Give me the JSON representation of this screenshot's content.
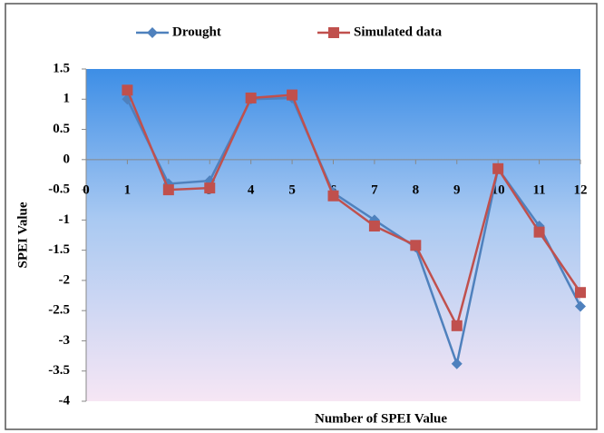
{
  "chart_data": {
    "type": "line",
    "x_label": "Number of  SPEI Value",
    "y_label": "SPEI Value",
    "x": [
      1,
      2,
      3,
      4,
      5,
      6,
      7,
      8,
      9,
      10,
      11,
      12
    ],
    "series": [
      {
        "name": "Drought",
        "color": "#4f81bd",
        "marker": "diamond",
        "values": [
          1.0,
          -0.4,
          -0.35,
          1.0,
          1.02,
          -0.55,
          -1.0,
          -1.45,
          -3.38,
          -0.15,
          -1.1,
          -2.43
        ]
      },
      {
        "name": "Simulated data",
        "color": "#c0504d",
        "marker": "square",
        "values": [
          1.15,
          -0.5,
          -0.47,
          1.02,
          1.07,
          -0.6,
          -1.1,
          -1.42,
          -2.75,
          -0.15,
          -1.2,
          -2.2
        ]
      }
    ],
    "xlim": [
      0,
      12
    ],
    "xticks": [
      0,
      1,
      2,
      3,
      4,
      5,
      6,
      7,
      8,
      9,
      10,
      11,
      12
    ],
    "ylim": [
      -4,
      1.5
    ],
    "yticks": [
      -4,
      -3.5,
      -3,
      -2.5,
      -2,
      -1.5,
      -1,
      -0.5,
      0,
      0.5,
      1,
      1.5
    ],
    "grid": false,
    "legend": "top"
  }
}
